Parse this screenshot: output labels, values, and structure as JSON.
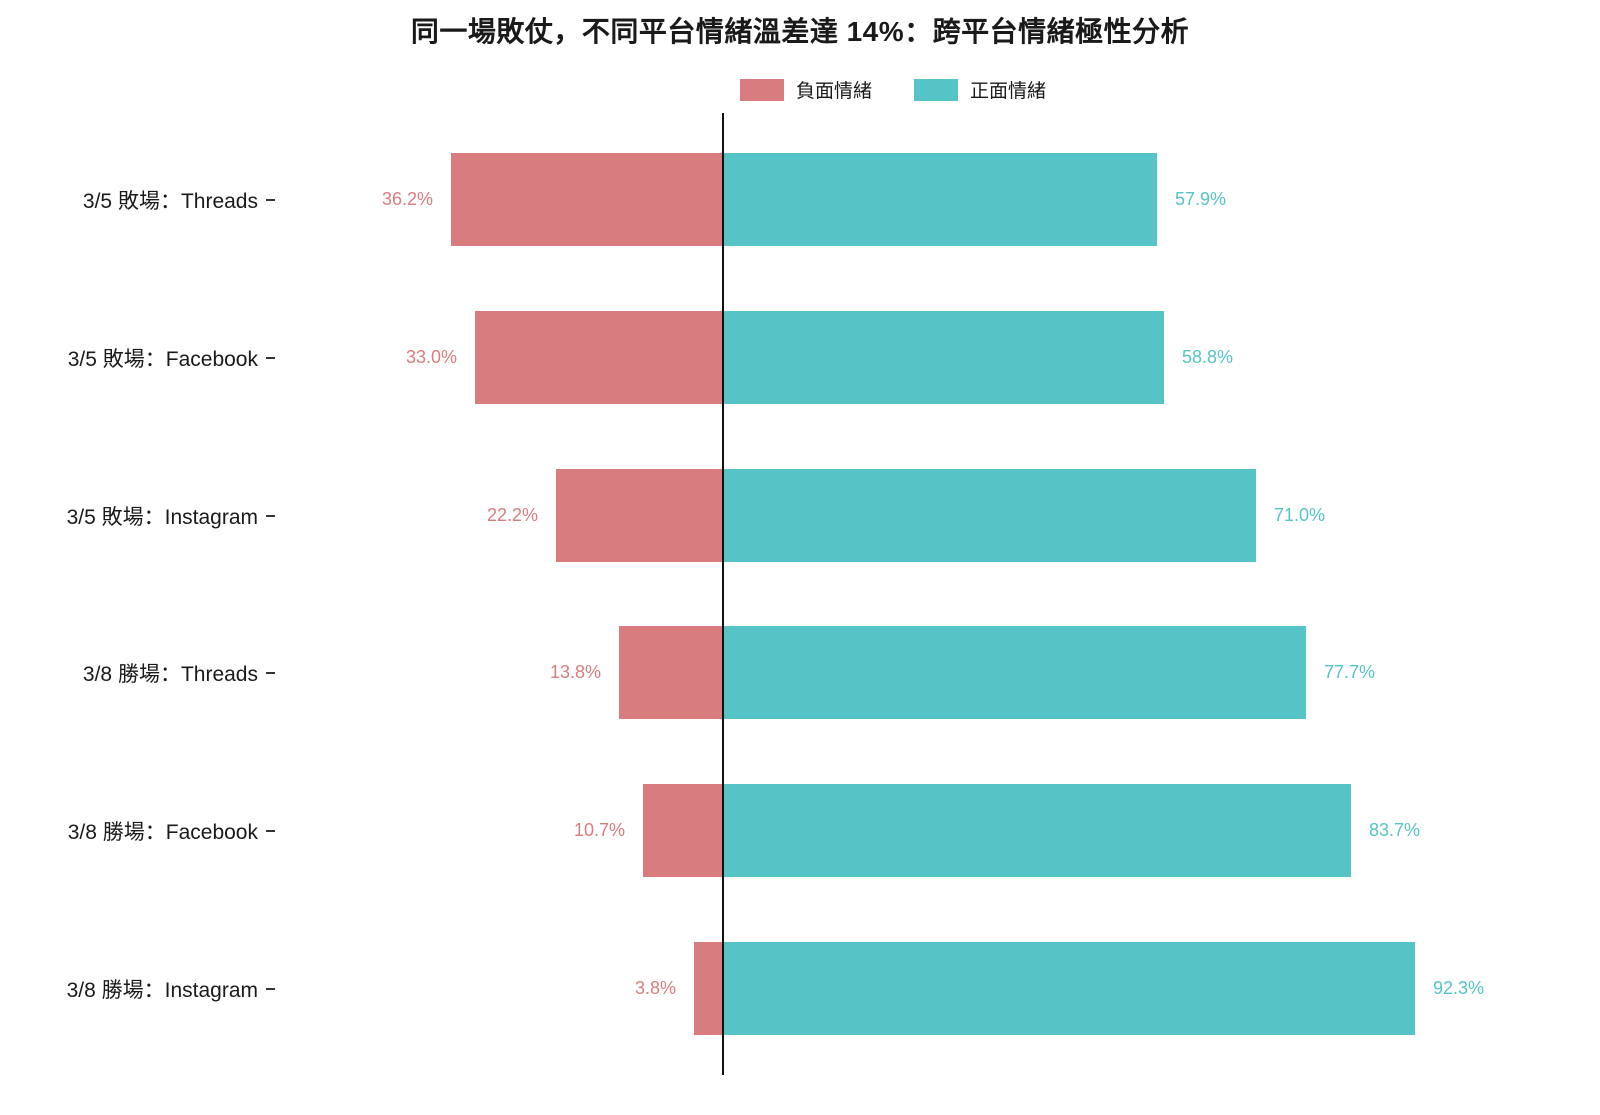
{
  "chart_data": {
    "type": "bar",
    "variant": "diverging-horizontal",
    "title": "同一場敗仗，不同平台情緒溫差達 14%：跨平台情緒極性分析",
    "categories": [
      "3/5 敗場：Threads",
      "3/5 敗場：Facebook",
      "3/5 敗場：Instagram",
      "3/8 勝場：Threads",
      "3/8 勝場：Facebook",
      "3/8 勝場：Instagram"
    ],
    "series": [
      {
        "name": "負面情緒",
        "direction": "left",
        "color": "#d97c80",
        "values": [
          36.2,
          33.0,
          22.2,
          13.8,
          10.7,
          3.8
        ]
      },
      {
        "name": "正面情緒",
        "direction": "right",
        "color": "#56c4c6",
        "values": [
          57.9,
          58.8,
          71.0,
          77.7,
          83.7,
          92.3
        ]
      }
    ],
    "value_suffix": "%",
    "legend_position": "top",
    "grid": false,
    "zero_axis": true
  }
}
